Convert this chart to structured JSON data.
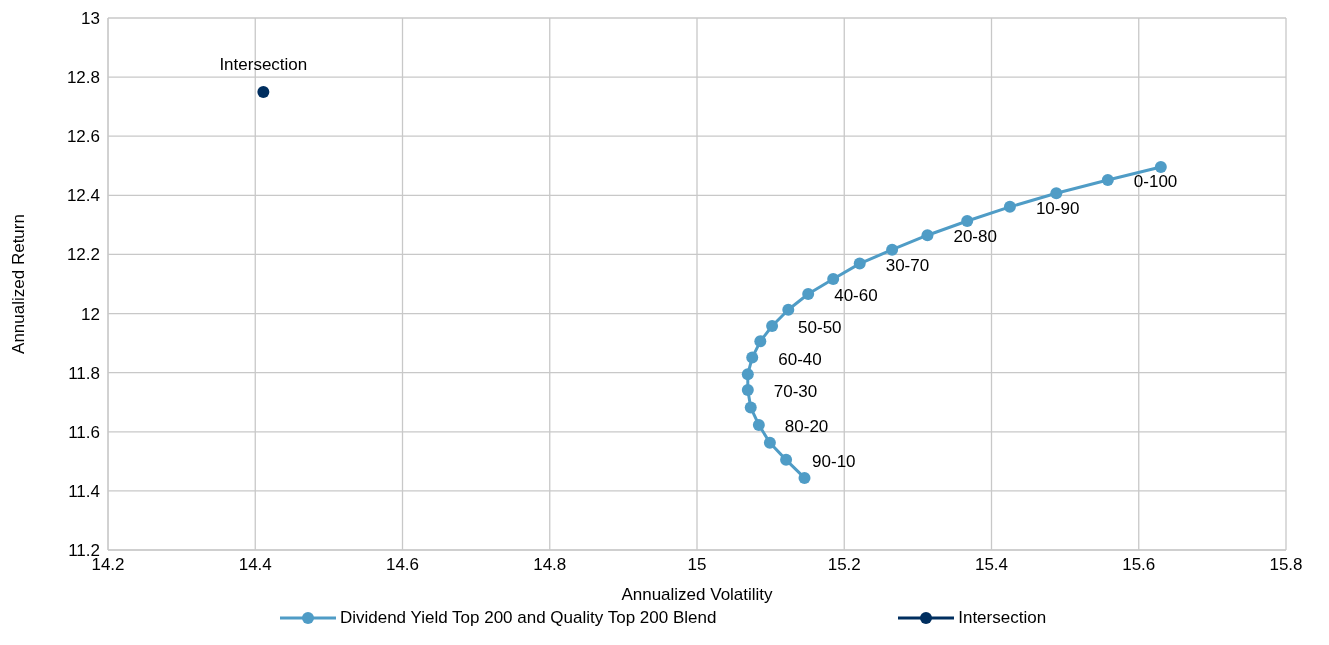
{
  "chart_data": {
    "type": "line",
    "xlabel": "Annualized Volatility",
    "ylabel": "Annualized Return",
    "xlim": [
      14.2,
      15.8
    ],
    "xticks": [
      14.2,
      14.4,
      14.6,
      14.8,
      15,
      15.2,
      15.4,
      15.6,
      15.8
    ],
    "ylim": [
      11.2,
      13
    ],
    "yticks": [
      11.2,
      11.4,
      11.6,
      11.8,
      12,
      12.2,
      12.4,
      12.6,
      12.8,
      13
    ],
    "grid": true,
    "legend": "bottom",
    "marker": "circle",
    "line_style": "solid",
    "series": [
      {
        "name": "Dividend Yield Top 200 and Quality Top 200 Blend",
        "color": "#4f9cc6",
        "x": [
          15.63,
          15.558,
          15.488,
          15.425,
          15.367,
          15.313,
          15.265,
          15.221,
          15.185,
          15.151,
          15.124,
          15.102,
          15.086,
          15.075,
          15.069,
          15.069,
          15.073,
          15.084,
          15.099,
          15.121,
          15.146
        ],
        "values": [
          12.496,
          12.452,
          12.407,
          12.361,
          12.313,
          12.265,
          12.216,
          12.169,
          12.117,
          12.066,
          12.013,
          11.958,
          11.906,
          11.851,
          11.795,
          11.741,
          11.682,
          11.623,
          11.563,
          11.505,
          11.444
        ],
        "value_labels": [
          null,
          "0-100",
          null,
          "10-90",
          null,
          "20-80",
          null,
          "30-70",
          null,
          "40-60",
          null,
          "50-50",
          null,
          "60-40",
          null,
          "70-30",
          null,
          "80-20",
          null,
          "90-10",
          null
        ]
      },
      {
        "name": "Intersection",
        "color": "#002e5f",
        "x": [
          14.411
        ],
        "values": [
          12.75
        ],
        "value_labels": [
          "Intersection"
        ]
      }
    ]
  }
}
